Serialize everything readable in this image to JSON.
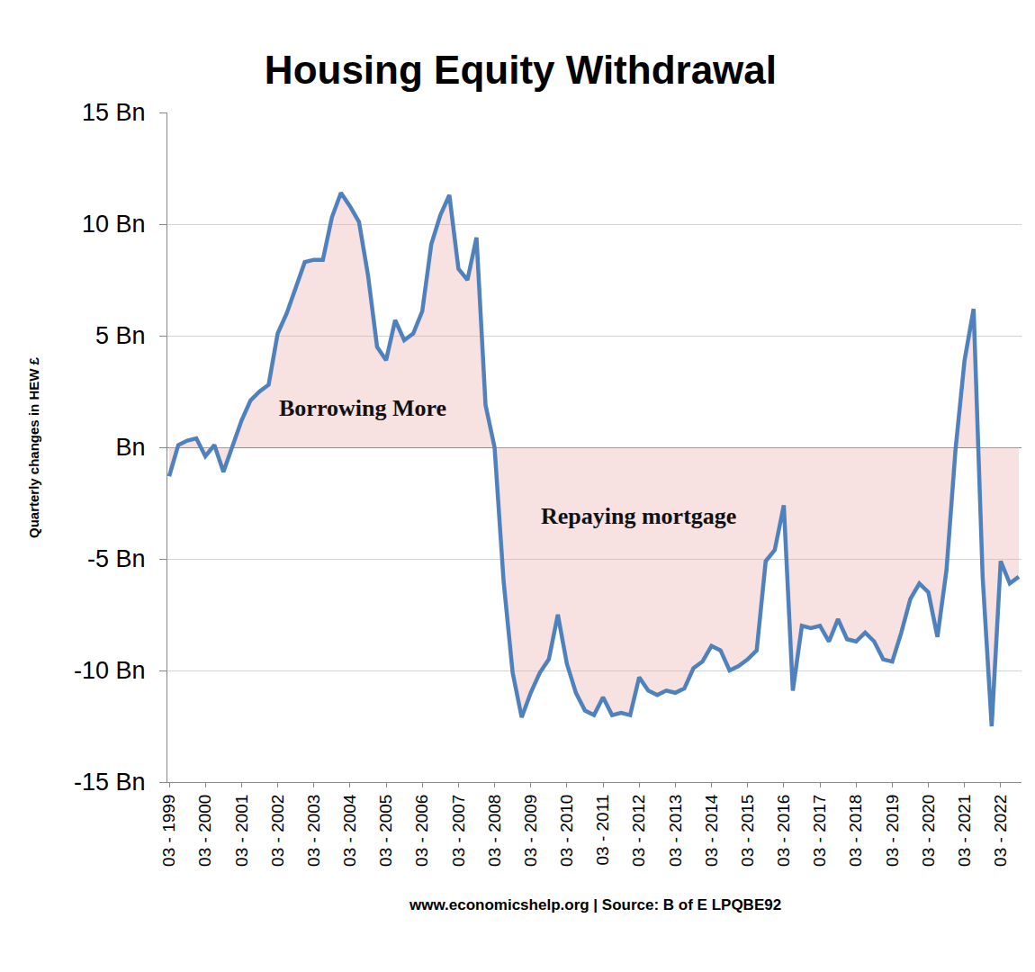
{
  "chart_data": {
    "type": "line",
    "title": "Housing Equity Withdrawal",
    "y_label": "Quarterly changes in HEW £",
    "source": "www.economicshelp.org | Source: B of E LPQBE92",
    "annotations": [
      "Borrowing More",
      "Repaying mortgage"
    ],
    "categories": [
      "03 - 1999",
      null,
      null,
      null,
      "03 - 2000",
      null,
      null,
      null,
      "03 - 2001",
      null,
      null,
      null,
      "03 - 2002",
      null,
      null,
      null,
      "03 - 2003",
      null,
      null,
      null,
      "03 - 2004",
      null,
      null,
      null,
      "03 - 2005",
      null,
      null,
      null,
      "03 - 2006",
      null,
      null,
      null,
      "03 - 2007",
      null,
      null,
      null,
      "03 - 2008",
      null,
      null,
      null,
      "03 - 2009",
      null,
      null,
      null,
      "03 - 2010",
      null,
      null,
      null,
      "03 - 2011",
      null,
      null,
      null,
      "03 - 2012",
      null,
      null,
      null,
      "03 - 2013",
      null,
      null,
      null,
      "03 - 2014",
      null,
      null,
      null,
      "03 - 2015",
      null,
      null,
      null,
      "03 - 2016",
      null,
      null,
      null,
      "03 - 2017",
      null,
      null,
      null,
      "03 - 2018",
      null,
      null,
      null,
      "03 - 2019",
      null,
      null,
      null,
      "03 - 2020",
      null,
      null,
      null,
      "03 - 2021",
      null,
      null,
      null,
      "03 - 2022",
      null,
      null
    ],
    "values": [
      -1.3,
      0.1,
      0.3,
      0.4,
      -0.4,
      0.1,
      -1.1,
      0.0,
      1.2,
      2.1,
      2.5,
      2.8,
      5.1,
      6.0,
      7.2,
      8.3,
      8.4,
      8.4,
      10.3,
      11.4,
      10.8,
      10.1,
      7.7,
      4.5,
      3.9,
      5.7,
      4.8,
      5.1,
      6.1,
      9.1,
      10.4,
      11.3,
      8.0,
      7.5,
      9.4,
      1.9,
      0.0,
      -6.0,
      -10.1,
      -12.1,
      -11.0,
      -10.1,
      -9.5,
      -7.5,
      -9.7,
      -11.0,
      -11.8,
      -12.0,
      -11.2,
      -12.0,
      -11.9,
      -12.0,
      -10.3,
      -10.9,
      -11.1,
      -10.9,
      -11.0,
      -10.8,
      -9.9,
      -9.6,
      -8.9,
      -9.1,
      -10.0,
      -9.8,
      -9.5,
      -9.1,
      -5.1,
      -4.6,
      -2.6,
      -10.9,
      -8.0,
      -8.1,
      -8.0,
      -8.7,
      -7.7,
      -8.6,
      -8.7,
      -8.3,
      -8.7,
      -9.5,
      -9.6,
      -8.3,
      -6.8,
      -6.1,
      -6.5,
      -8.5,
      -5.5,
      -0.1,
      3.9,
      6.2,
      -5.8,
      -12.5,
      -5.1,
      -6.1,
      -5.8
    ],
    "color": "#4f81bd",
    "ylim": [
      -15,
      15
    ],
    "yticks": [
      {
        "value": -15,
        "label": "-15 Bn"
      },
      {
        "value": -10,
        "label": "-10 Bn"
      },
      {
        "value": -5,
        "label": "-5 Bn"
      },
      {
        "value": 0,
        "label": "Bn"
      },
      {
        "value": 5,
        "label": "5 Bn"
      },
      {
        "value": 10,
        "label": "10 Bn"
      },
      {
        "value": 15,
        "label": "15 Bn"
      }
    ],
    "grid": true
  }
}
